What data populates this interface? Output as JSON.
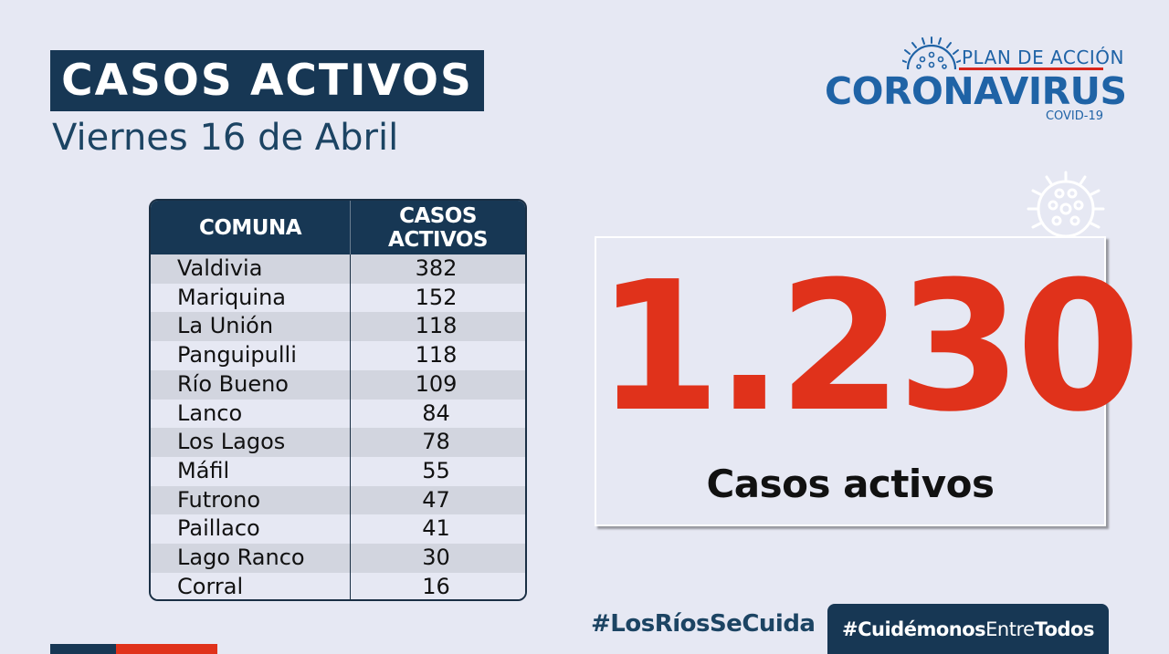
{
  "header": {
    "title": "CASOS ACTIVOS",
    "date": "Viernes 16 de Abril"
  },
  "logo": {
    "plan": "PLAN DE ACCIÓN",
    "name": "CORONAVIRUS",
    "sub": "COVID-19"
  },
  "table": {
    "headers": [
      "COMUNA",
      "CASOS ACTIVOS"
    ],
    "rows": [
      {
        "comuna": "Valdivia",
        "casos": "382"
      },
      {
        "comuna": "Mariquina",
        "casos": "152"
      },
      {
        "comuna": "La Unión",
        "casos": "118"
      },
      {
        "comuna": "Panguipulli",
        "casos": "118"
      },
      {
        "comuna": "Río Bueno",
        "casos": "109"
      },
      {
        "comuna": "Lanco",
        "casos": "84"
      },
      {
        "comuna": "Los Lagos",
        "casos": "78"
      },
      {
        "comuna": "Máfil",
        "casos": "55"
      },
      {
        "comuna": "Futrono",
        "casos": "47"
      },
      {
        "comuna": "Paillaco",
        "casos": "41"
      },
      {
        "comuna": "Lago Ranco",
        "casos": "30"
      },
      {
        "comuna": "Corral",
        "casos": "16"
      }
    ]
  },
  "total": {
    "value": "1.230",
    "label": "Casos activos"
  },
  "footer": {
    "hashtag_region": "#LosRíosSeCuida",
    "hashtag_campaign_bold1": "#Cuidémonos",
    "hashtag_campaign_mid": "Entre",
    "hashtag_campaign_bold2": "Todos"
  },
  "colors": {
    "navy": "#173754",
    "red": "#e0321b",
    "background": "#e6e8f3",
    "logo_blue": "#1f63a6"
  }
}
